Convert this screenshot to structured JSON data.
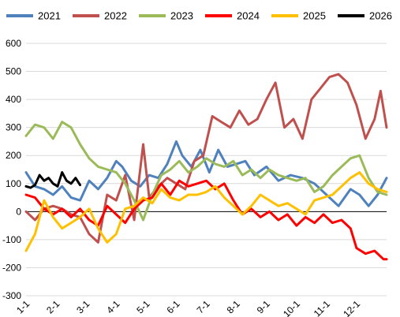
{
  "chart_data": {
    "type": "line",
    "title": "",
    "xlabel": "",
    "ylabel": "",
    "ylim": [
      -300,
      600
    ],
    "yticks": [
      -300,
      -200,
      -100,
      0,
      100,
      200,
      300,
      400,
      500,
      600
    ],
    "grid": true,
    "legend_position": "top",
    "x_tick_labels": [
      "1-1",
      "2-1",
      "3-1",
      "4-1",
      "5-1",
      "6-1",
      "7-1",
      "8-1",
      "9-1",
      "10-1",
      "11-1",
      "12-1"
    ],
    "x_unit": "month (1 = Jan 1, 13 = end of Dec)",
    "series": [
      {
        "name": "2021",
        "color": "#4f81bd",
        "x": [
          1.0,
          1.3,
          1.6,
          1.9,
          2.2,
          2.5,
          2.8,
          3.1,
          3.4,
          3.7,
          4.0,
          4.2,
          4.5,
          4.8,
          5.1,
          5.4,
          5.7,
          6.0,
          6.2,
          6.5,
          6.8,
          7.1,
          7.4,
          7.7,
          8.0,
          8.3,
          8.6,
          9.0,
          9.4,
          9.8,
          10.2,
          10.6,
          11.0,
          11.4,
          11.8,
          12.1,
          12.4,
          12.7,
          13.0
        ],
        "y": [
          140,
          90,
          80,
          60,
          90,
          50,
          40,
          110,
          80,
          120,
          180,
          160,
          110,
          90,
          130,
          120,
          170,
          250,
          200,
          160,
          220,
          140,
          220,
          160,
          170,
          180,
          130,
          160,
          110,
          130,
          120,
          100,
          60,
          20,
          80,
          60,
          20,
          60,
          120
        ]
      },
      {
        "name": "2022",
        "color": "#c0504d",
        "x": [
          1.0,
          1.3,
          1.6,
          1.9,
          2.2,
          2.5,
          2.8,
          3.1,
          3.4,
          3.7,
          4.0,
          4.3,
          4.6,
          4.9,
          5.1,
          5.4,
          5.7,
          6.0,
          6.3,
          6.6,
          6.9,
          7.2,
          7.5,
          7.8,
          8.1,
          8.4,
          8.7,
          9.0,
          9.3,
          9.6,
          9.9,
          10.2,
          10.5,
          10.8,
          11.1,
          11.4,
          11.7,
          12.0,
          12.3,
          12.6,
          12.8,
          13.0
        ],
        "y": [
          0,
          -30,
          10,
          20,
          10,
          -10,
          -20,
          -80,
          -110,
          60,
          40,
          130,
          -30,
          240,
          50,
          90,
          120,
          100,
          80,
          180,
          200,
          340,
          320,
          300,
          360,
          310,
          330,
          400,
          460,
          300,
          330,
          260,
          400,
          440,
          480,
          490,
          460,
          380,
          260,
          330,
          430,
          300
        ]
      },
      {
        "name": "2023",
        "color": "#9bbb59",
        "x": [
          1.0,
          1.3,
          1.6,
          1.9,
          2.2,
          2.5,
          2.8,
          3.1,
          3.4,
          3.7,
          4.0,
          4.3,
          4.6,
          4.9,
          5.2,
          5.5,
          5.8,
          6.1,
          6.4,
          6.7,
          7.0,
          7.3,
          7.6,
          7.9,
          8.2,
          8.5,
          8.8,
          9.1,
          9.4,
          9.7,
          10.0,
          10.3,
          10.6,
          10.9,
          11.2,
          11.5,
          11.8,
          12.1,
          12.4,
          12.7,
          13.0
        ],
        "y": [
          270,
          310,
          300,
          260,
          320,
          300,
          240,
          190,
          160,
          150,
          140,
          100,
          40,
          -30,
          60,
          130,
          150,
          180,
          140,
          160,
          190,
          170,
          160,
          180,
          130,
          150,
          120,
          150,
          130,
          120,
          110,
          120,
          70,
          90,
          130,
          160,
          190,
          200,
          120,
          70,
          60
        ]
      },
      {
        "name": "2024",
        "color": "#ff0000",
        "x": [
          1.0,
          1.3,
          1.6,
          1.9,
          2.2,
          2.5,
          2.8,
          3.1,
          3.4,
          3.7,
          4.0,
          4.3,
          4.6,
          4.9,
          5.2,
          5.5,
          5.8,
          6.1,
          6.4,
          6.7,
          7.0,
          7.3,
          7.6,
          7.9,
          8.2,
          8.5,
          8.8,
          9.1,
          9.4,
          9.7,
          10.0,
          10.3,
          10.6,
          10.9,
          11.2,
          11.5,
          11.8,
          12.0,
          12.3,
          12.6,
          12.9,
          13.0
        ],
        "y": [
          60,
          50,
          10,
          -10,
          10,
          -20,
          10,
          -30,
          -50,
          20,
          -10,
          -40,
          10,
          40,
          50,
          100,
          60,
          110,
          90,
          100,
          110,
          80,
          100,
          40,
          -10,
          10,
          -20,
          0,
          -30,
          -10,
          -50,
          -20,
          -40,
          -10,
          -40,
          -30,
          -60,
          -130,
          -150,
          -140,
          -170,
          -170
        ]
      },
      {
        "name": "2025",
        "color": "#ffc000",
        "x": [
          1.0,
          1.3,
          1.6,
          1.9,
          2.2,
          2.5,
          2.8,
          3.1,
          3.4,
          3.7,
          4.0,
          4.3,
          4.6,
          4.9,
          5.2,
          5.5,
          5.8,
          6.1,
          6.4,
          6.7,
          7.0,
          7.3,
          7.6,
          7.9,
          8.2,
          8.5,
          8.8,
          9.1,
          9.4,
          9.7,
          10.0,
          10.3,
          10.6,
          10.9,
          11.2,
          11.5,
          11.8,
          12.1,
          12.4,
          12.7,
          13.0
        ],
        "y": [
          -140,
          -80,
          40,
          -20,
          -60,
          -40,
          -20,
          10,
          -60,
          -110,
          -80,
          10,
          20,
          50,
          30,
          80,
          50,
          40,
          60,
          60,
          70,
          90,
          50,
          20,
          -10,
          20,
          60,
          40,
          20,
          30,
          10,
          -10,
          40,
          50,
          60,
          90,
          120,
          140,
          100,
          80,
          70
        ]
      },
      {
        "name": "2026",
        "color": "#000000",
        "x": [
          1.0,
          1.15,
          1.3,
          1.45,
          1.6,
          1.75,
          1.9,
          2.05,
          2.2,
          2.35,
          2.5,
          2.65,
          2.8
        ],
        "y": [
          90,
          85,
          95,
          130,
          110,
          120,
          100,
          90,
          140,
          110,
          100,
          120,
          95
        ]
      }
    ]
  }
}
